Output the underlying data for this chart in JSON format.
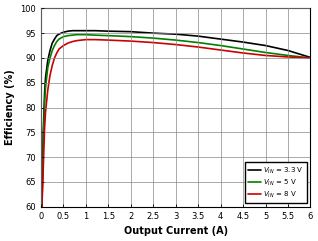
{
  "title": "",
  "xlabel": "Output Current (A)",
  "ylabel": "Efficiency (%)",
  "xlim": [
    0,
    6
  ],
  "ylim": [
    60,
    100
  ],
  "xticks": [
    0,
    0.5,
    1,
    1.5,
    2,
    2.5,
    3,
    3.5,
    4,
    4.5,
    5,
    5.5,
    6
  ],
  "yticks": [
    60,
    65,
    70,
    75,
    80,
    85,
    90,
    95,
    100
  ],
  "legend_labels": [
    "$V_{IN}$ = 3.3 V",
    "$V_{IN}$ = 5 V",
    "$V_{IN}$ = 8 V"
  ],
  "legend_colors": [
    "#000000",
    "#008000",
    "#cc0000"
  ],
  "grid_color": "#888888",
  "background_color": "#ffffff",
  "curves": {
    "vin_3v3": {
      "x": [
        0.02,
        0.05,
        0.08,
        0.1,
        0.15,
        0.2,
        0.25,
        0.3,
        0.35,
        0.4,
        0.5,
        0.6,
        0.7,
        0.8,
        1.0,
        1.2,
        1.5,
        2.0,
        2.5,
        3.0,
        3.5,
        4.0,
        4.5,
        5.0,
        5.5,
        6.0
      ],
      "y": [
        60,
        75,
        83,
        86,
        89.5,
        91.5,
        93.0,
        93.8,
        94.5,
        94.8,
        95.2,
        95.4,
        95.5,
        95.5,
        95.5,
        95.5,
        95.4,
        95.3,
        95.0,
        94.8,
        94.4,
        93.8,
        93.2,
        92.5,
        91.5,
        90.1
      ],
      "color": "#000000",
      "lw": 1.2
    },
    "vin_5v": {
      "x": [
        0.02,
        0.05,
        0.08,
        0.1,
        0.15,
        0.2,
        0.25,
        0.3,
        0.35,
        0.4,
        0.5,
        0.6,
        0.7,
        0.8,
        1.0,
        1.2,
        1.5,
        2.0,
        2.5,
        3.0,
        3.5,
        4.0,
        4.5,
        5.0,
        5.5,
        6.0
      ],
      "y": [
        60,
        73,
        81,
        84,
        88,
        90,
        91.5,
        92.5,
        93.3,
        93.8,
        94.3,
        94.5,
        94.6,
        94.7,
        94.7,
        94.6,
        94.5,
        94.3,
        94.0,
        93.6,
        93.1,
        92.5,
        91.8,
        91.1,
        90.5,
        90.0
      ],
      "color": "#008000",
      "lw": 1.2
    },
    "vin_8v": {
      "x": [
        0.02,
        0.05,
        0.08,
        0.1,
        0.15,
        0.2,
        0.25,
        0.3,
        0.35,
        0.4,
        0.5,
        0.6,
        0.7,
        0.8,
        1.0,
        1.2,
        1.5,
        2.0,
        2.5,
        3.0,
        3.5,
        4.0,
        4.5,
        5.0,
        5.5,
        6.0
      ],
      "y": [
        60,
        68,
        76,
        79,
        83.5,
        86.5,
        88.5,
        90.0,
        91.0,
        91.8,
        92.5,
        93.0,
        93.3,
        93.5,
        93.7,
        93.7,
        93.6,
        93.4,
        93.1,
        92.7,
        92.2,
        91.6,
        91.0,
        90.5,
        90.2,
        90.0
      ],
      "color": "#cc0000",
      "lw": 1.2
    }
  }
}
